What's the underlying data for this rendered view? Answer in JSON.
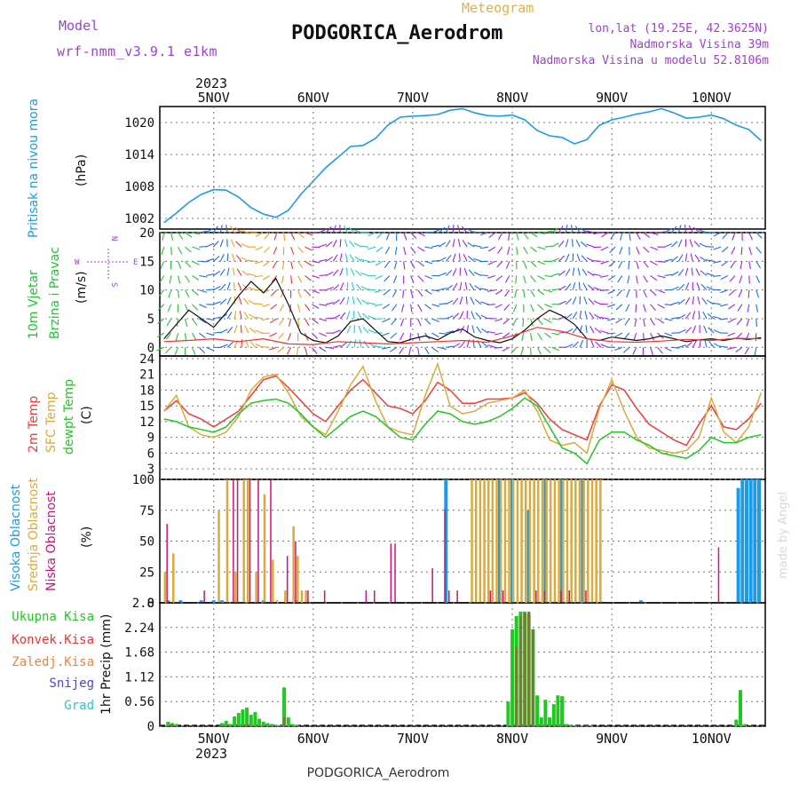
{
  "header": {
    "model_label": "Model",
    "model_name": "wrf-nmm_v3.9.1 e1km",
    "meteogram_label": "Meteogram",
    "station_title": "PODGORICA_Aerodrom",
    "lonlat": "lon,lat (19.25E, 42.3625N)",
    "elevation": "Nadmorska Visina 39m",
    "model_elevation": "Nadmorska Visina u modelu 52.8106m"
  },
  "footer": {
    "station": "PODGORICA_Aerodrom",
    "credit": "made by Angel"
  },
  "time_axis": {
    "year": "2023",
    "day_labels": [
      "5NOV",
      "6NOV",
      "7NOV",
      "8NOV",
      "9NOV",
      "10NOV"
    ],
    "day_positions_h": [
      0,
      24,
      48,
      72,
      96,
      120
    ]
  },
  "colors": {
    "pressure": "#1e9be6",
    "wind_green": "#22c433",
    "wind_purple": "#a020f0",
    "t2m": "#f03c3c",
    "tsfc": "#dcaa3c",
    "dewpt": "#22c822",
    "high_cloud": "#1e9be6",
    "mid_cloud": "#dcaa3c",
    "low_cloud": "#c8147d",
    "precip_total": "#22c822",
    "precip_conv": "#f03232",
    "precip_frz": "#f0823c",
    "snow": "#4646dc",
    "hail": "#28c8c8",
    "precip_olive": "#7a7a32"
  },
  "wind_compass": {
    "n": "N",
    "s": "S",
    "w": "W",
    "e": "E"
  },
  "chart_data": [
    {
      "type": "line",
      "panel": "pressure",
      "ylabel_lines": [
        "Pritisak na nivou mora",
        "(hPa)"
      ],
      "yticks": [
        1002,
        1008,
        1014,
        1020
      ],
      "ylim": [
        1000,
        1023
      ],
      "grid": true,
      "x_unit": "hours from 5NOV 00UTC",
      "series": [
        {
          "x": [
            -12,
            -9,
            -6,
            -3,
            0,
            3,
            6,
            9,
            12,
            15,
            18,
            21,
            24,
            27,
            30,
            33,
            36,
            39,
            42,
            45,
            48,
            51,
            54,
            57,
            60,
            63,
            66,
            69,
            72,
            75,
            78,
            81,
            84,
            87,
            90,
            93,
            96,
            99,
            102,
            105,
            108,
            111,
            114,
            117,
            120,
            123,
            126,
            129,
            132
          ],
          "y": [
            1001.2,
            1003,
            1005,
            1006.5,
            1007.4,
            1007.3,
            1006,
            1004,
            1002.8,
            1002.2,
            1003.5,
            1006.5,
            1009,
            1011.5,
            1013.5,
            1015.5,
            1015.7,
            1017,
            1019.5,
            1021,
            1021.2,
            1021.3,
            1021.5,
            1022.3,
            1022.6,
            1021.8,
            1021.3,
            1021.2,
            1021.4,
            1020.5,
            1018.5,
            1017.5,
            1017.2,
            1016,
            1016.8,
            1019.5,
            1020.5,
            1021,
            1021.6,
            1022,
            1022.6,
            1021.8,
            1020.8,
            1021,
            1021.4,
            1020.7,
            1019.5,
            1018.7,
            1016.6
          ]
        }
      ]
    },
    {
      "type": "line",
      "panel": "wind",
      "ylabel_lines": [
        "10m Vjetar",
        "Brzina i Pravac",
        "(m/s)"
      ],
      "yticks": [
        0,
        5,
        10,
        15,
        20
      ],
      "ylim": [
        -1.5,
        20
      ],
      "grid": true,
      "series": [
        {
          "x": [
            -12,
            -9,
            -6,
            -3,
            0,
            3,
            6,
            9,
            12,
            15,
            18,
            21,
            24,
            27,
            30,
            33,
            36,
            39,
            42,
            45,
            48,
            51,
            54,
            57,
            60,
            63,
            66,
            69,
            72,
            75,
            78,
            81,
            84,
            87,
            90,
            93,
            96,
            99,
            102,
            105,
            108,
            111,
            114,
            117,
            120,
            123,
            126,
            129,
            132
          ],
          "y": [
            1.5,
            4,
            6.5,
            5,
            3.5,
            6,
            9,
            11.5,
            9.5,
            12,
            7.5,
            2.5,
            1.2,
            0.8,
            2,
            4.5,
            5,
            3,
            1,
            0.8,
            1.5,
            2,
            1.3,
            2.5,
            3.2,
            1.8,
            1.2,
            0.8,
            1.5,
            3,
            5,
            6.5,
            5.5,
            4,
            1.5,
            1.2,
            1.8,
            1.5,
            1.2,
            1.5,
            2,
            1.5,
            1,
            1.3,
            1.5,
            1.2,
            1.6,
            1.4,
            1.7
          ]
        },
        {
          "x": [
            -12,
            -6,
            0,
            6,
            12,
            18,
            24,
            30,
            36,
            42,
            48,
            54,
            60,
            66,
            72,
            78,
            84,
            90,
            96,
            102,
            108,
            114,
            120,
            126,
            132
          ],
          "y": [
            1,
            1.2,
            1.5,
            1,
            1.5,
            0.6,
            0.5,
            1,
            0.8,
            0.6,
            0.8,
            1,
            1.2,
            0.9,
            2,
            3.5,
            2.8,
            1.5,
            1,
            0.9,
            1.1,
            1.4,
            1.2,
            1.6,
            1.5
          ]
        }
      ]
    },
    {
      "type": "line",
      "panel": "temperature",
      "ylabel_lines": [
        "2m Temp",
        "SFC Temp",
        "dewpt Temp",
        "(C)"
      ],
      "series_names": [
        "2m Temp",
        "SFC Temp",
        "dewpt Temp"
      ],
      "yticks": [
        3,
        6,
        9,
        12,
        15,
        18,
        21,
        24
      ],
      "ylim": [
        1,
        24.5
      ],
      "grid": true,
      "series": [
        {
          "name": "2m Temp",
          "x": [
            -12,
            -9,
            -6,
            -3,
            0,
            3,
            6,
            9,
            12,
            15,
            18,
            21,
            24,
            27,
            30,
            33,
            36,
            39,
            42,
            45,
            48,
            51,
            54,
            57,
            60,
            63,
            66,
            69,
            72,
            75,
            78,
            81,
            84,
            87,
            90,
            93,
            96,
            99,
            102,
            105,
            108,
            111,
            114,
            117,
            120,
            123,
            126,
            129,
            132
          ],
          "y": [
            14,
            16,
            13.5,
            12.5,
            11,
            12.5,
            14,
            17,
            20,
            20.7,
            18.5,
            16,
            13.5,
            12,
            15,
            18,
            20,
            17.5,
            15,
            14.5,
            13.5,
            16,
            19.5,
            18,
            15.5,
            15.5,
            16.3,
            16.3,
            16.5,
            17.5,
            15.5,
            12.5,
            10.5,
            9.5,
            8.5,
            15,
            19,
            18,
            14.5,
            11.5,
            10,
            8.5,
            7.5,
            11.5,
            15,
            11,
            10.5,
            12.5,
            15.5
          ]
        },
        {
          "name": "SFC Temp",
          "x": [
            -12,
            -9,
            -6,
            -3,
            0,
            3,
            6,
            9,
            12,
            15,
            18,
            21,
            24,
            27,
            30,
            33,
            36,
            39,
            42,
            45,
            48,
            51,
            54,
            57,
            60,
            63,
            66,
            69,
            72,
            75,
            78,
            81,
            84,
            87,
            90,
            93,
            96,
            99,
            102,
            105,
            108,
            111,
            114,
            117,
            120,
            123,
            126,
            129,
            132
          ],
          "y": [
            14,
            17,
            11,
            9.5,
            9,
            10,
            13,
            18,
            20.5,
            21,
            17.5,
            13,
            11,
            9.5,
            14,
            19,
            22.5,
            16,
            11,
            10,
            9.5,
            17,
            23,
            15,
            13.5,
            14,
            15.5,
            16,
            16.5,
            18,
            14,
            8.5,
            7.5,
            8,
            6,
            14.5,
            20,
            14,
            9,
            7,
            6.5,
            6,
            6.5,
            9,
            16.5,
            10,
            8,
            11,
            17.5
          ]
        },
        {
          "name": "dewpt Temp",
          "x": [
            -12,
            -9,
            -6,
            -3,
            0,
            3,
            6,
            9,
            12,
            15,
            18,
            21,
            24,
            27,
            30,
            33,
            36,
            39,
            42,
            45,
            48,
            51,
            54,
            57,
            60,
            63,
            66,
            69,
            72,
            75,
            78,
            81,
            84,
            87,
            90,
            93,
            96,
            99,
            102,
            105,
            108,
            111,
            114,
            117,
            120,
            123,
            126,
            129,
            132
          ],
          "y": [
            12.5,
            12,
            11,
            10.5,
            10,
            11,
            13.5,
            15.5,
            16,
            16.3,
            15.5,
            13.5,
            11,
            9,
            11,
            13,
            14,
            13,
            11,
            9,
            8.5,
            11.5,
            14,
            13.5,
            12,
            11.5,
            12,
            13,
            14.5,
            16.5,
            15,
            11,
            7,
            6,
            4,
            8.5,
            10,
            10,
            8.5,
            7.5,
            6,
            5.5,
            5,
            6.5,
            9,
            8,
            8,
            9,
            9.5
          ]
        }
      ]
    },
    {
      "type": "bar",
      "panel": "cloud",
      "ylabel_lines": [
        "Visoka Oblacnost",
        "Srednja Oblacnost",
        "Niska Oblacnost",
        "(%)"
      ],
      "series_names": [
        "Visoka Oblacnost",
        "Srednja Oblacnost",
        "Niska Oblacnost"
      ],
      "yticks": [
        0,
        25,
        50,
        75,
        100
      ],
      "ylim": [
        0,
        100
      ],
      "grid": true,
      "series": [
        {
          "name": "Visoka Oblacnost",
          "x": [
            -11,
            -8,
            -3,
            0,
            2,
            12,
            20,
            56,
            69,
            72,
            76,
            80,
            84,
            89,
            103,
            126.5,
            127.5,
            128.5,
            129.5,
            130.5,
            131.5
          ],
          "y": [
            2,
            2,
            2,
            2,
            2,
            2,
            2,
            100,
            100,
            100,
            75,
            100,
            100,
            100,
            2,
            93,
            100,
            100,
            100,
            100,
            100
          ]
        },
        {
          "name": "Srednja Oblacnost",
          "x": [
            -12,
            -10,
            1,
            3,
            5,
            7,
            8,
            10,
            12,
            14,
            15,
            17,
            19,
            20,
            21,
            22,
            62,
            63,
            64,
            65,
            66,
            67,
            68,
            69,
            70,
            71,
            72,
            73,
            74,
            75,
            76,
            77,
            78,
            79,
            80,
            81,
            82,
            83,
            84,
            85,
            86,
            87,
            88,
            89,
            90,
            91,
            92,
            93
          ],
          "y": [
            25,
            40,
            75,
            100,
            25,
            100,
            100,
            25,
            88,
            35,
            2,
            10,
            62,
            38,
            10,
            10,
            100,
            100,
            100,
            100,
            100,
            100,
            100,
            100,
            100,
            100,
            100,
            100,
            100,
            100,
            100,
            100,
            100,
            100,
            100,
            100,
            100,
            100,
            100,
            100,
            100,
            100,
            100,
            100,
            100,
            100,
            100,
            100
          ]
        },
        {
          "name": "Niska Oblacnost",
          "x": [
            -11,
            -2,
            5,
            6,
            9,
            11,
            14,
            18,
            20,
            23,
            27,
            37,
            39,
            43,
            44,
            53,
            56,
            57,
            59,
            67,
            70,
            78,
            80,
            84,
            86,
            90,
            122
          ],
          "y": [
            64,
            10,
            100,
            100,
            100,
            100,
            100,
            38,
            50,
            10,
            10,
            10,
            10,
            48,
            48,
            28,
            76,
            10,
            10,
            10,
            10,
            10,
            10,
            10,
            10,
            10,
            45
          ]
        }
      ]
    },
    {
      "type": "bar",
      "panel": "precipitation",
      "ylabel_lines": [
        "1hr Precip (mm)"
      ],
      "legend": [
        "Ukupna Kisa",
        "Konvek.Kisa",
        "Zaledj.Kisa",
        "Snijeg",
        "Grad"
      ],
      "yticks": [
        0,
        0.56,
        1.12,
        1.68,
        2.24,
        2.8
      ],
      "ylim": [
        0,
        2.8
      ],
      "grid": true,
      "series": [
        {
          "name": "Ukupna Kisa",
          "x": [
            -11,
            -10,
            -9,
            2,
            3,
            4,
            5,
            6,
            7,
            8,
            9,
            10,
            11,
            12,
            13,
            14,
            15,
            16,
            17,
            18,
            19,
            20,
            71,
            72,
            73,
            74,
            75,
            76,
            77,
            78,
            79,
            80,
            81,
            82,
            83,
            84,
            85,
            86,
            87,
            88,
            89,
            90,
            91,
            126,
            127,
            128
          ],
          "y": [
            0.1,
            0.07,
            0.05,
            0.07,
            0.12,
            0.05,
            0.22,
            0.3,
            0.38,
            0.42,
            0.26,
            0.32,
            0.17,
            0.1,
            0.07,
            0.05,
            0.03,
            0.02,
            0.88,
            0.2,
            0.05,
            0.03,
            0.56,
            2.2,
            2.5,
            2.6,
            2.6,
            2.55,
            2.2,
            0.7,
            0.2,
            0.6,
            0.2,
            0.5,
            0.7,
            0.68,
            0.05,
            0.03,
            0.02,
            0.01,
            0.01,
            0.01,
            0.02,
            0.15,
            0.82,
            0.05
          ]
        },
        {
          "name": "Konvek.Kisa",
          "x": [
            -10,
            8,
            17,
            73,
            74,
            75,
            76,
            77
          ],
          "y": [
            0.05,
            0.05,
            0.2,
            1.8,
            2.5,
            2.58,
            2.6,
            2.2
          ]
        }
      ]
    }
  ]
}
